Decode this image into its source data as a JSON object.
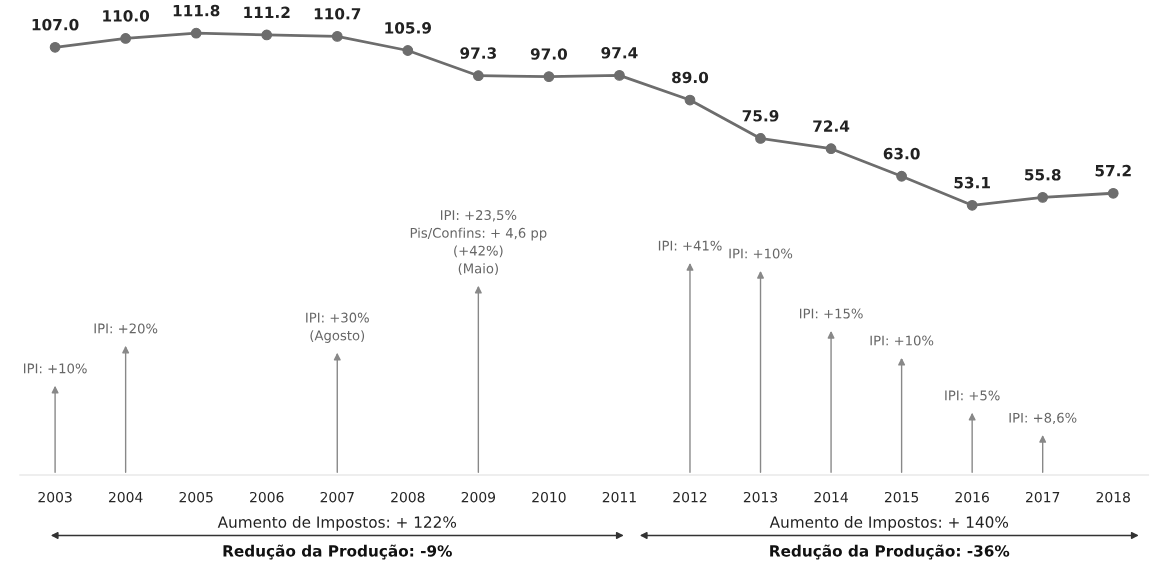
{
  "chart_data": {
    "type": "line",
    "categories": [
      "2003",
      "2004",
      "2005",
      "2006",
      "2007",
      "2008",
      "2009",
      "2010",
      "2011",
      "2012",
      "2013",
      "2014",
      "2015",
      "2016",
      "2017",
      "2018"
    ],
    "series": [
      {
        "color": "#6d6d6d",
        "values": [
          107.0,
          110.0,
          111.8,
          111.2,
          110.7,
          105.9,
          97.3,
          97.0,
          97.4,
          89.0,
          75.9,
          72.4,
          63.0,
          53.1,
          55.8,
          57.2
        ],
        "value_labels": [
          "107.0",
          "110.0",
          "111.8",
          "111.2",
          "110.7",
          "105.9",
          "97.3",
          "97.0",
          "97.4",
          "89.0",
          "75.9",
          "72.4",
          "63.0",
          "53.1",
          "55.8",
          "57.2"
        ]
      }
    ],
    "marker": "circle",
    "line_style": "solid",
    "grid": false,
    "legend": false,
    "tick_labels": "x",
    "annotations": [
      "IPI: +10%",
      "IPI: +20%",
      "IPI: +30%\n(Agosto)",
      "IPI: +23,5%\nPis/Confins: + 4,6 pp\n(+42%)\n(Maio)",
      "IPI: +41%",
      "IPI: +10%",
      "IPI: +15%",
      "IPI: +10%",
      "IPI: +5%",
      "IPI: +8,6%",
      "Aumento de Impostos: + 122%",
      "Redução da Produção: -9%",
      "Aumento de Impostos: + 140%",
      "Redução da Produção: -36%"
    ]
  }
}
